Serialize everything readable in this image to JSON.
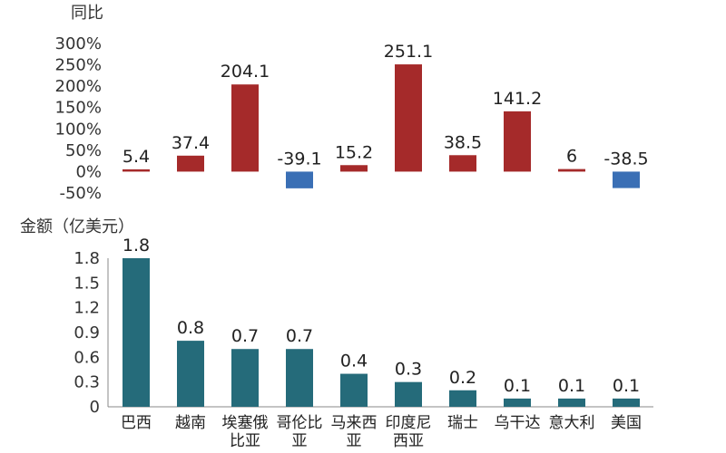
{
  "chart_data": [
    {
      "type": "bar",
      "title": "",
      "ylabel": "同比",
      "xlabel": "",
      "categories": [
        "巴西",
        "越南",
        "埃塞俄比亚",
        "哥伦比亚",
        "马来西亚",
        "印度尼西亚",
        "瑞士",
        "乌干达",
        "意大利",
        "美国"
      ],
      "values": [
        5.4,
        37.4,
        204.1,
        -39.1,
        15.2,
        251.1,
        38.5,
        141.2,
        6,
        -38.5
      ],
      "data_labels": [
        "5.4",
        "37.4",
        "204.1",
        "-39.1",
        "15.2",
        "251.1",
        "38.5",
        "141.2",
        "6",
        "-38.5"
      ],
      "ylim": [
        -50,
        300
      ],
      "yticks": [
        300,
        250,
        200,
        150,
        100,
        50,
        0,
        -50
      ],
      "ytick_labels": [
        "300%",
        "250%",
        "200%",
        "150%",
        "100%",
        "50%",
        "0%",
        "-50%"
      ],
      "grid": false,
      "colors": {
        "positive": "#a52a2a",
        "negative": "#3a6fb5"
      }
    },
    {
      "type": "bar",
      "title": "",
      "ylabel": "金额（亿美元）",
      "xlabel": "",
      "categories": [
        "巴西",
        "越南",
        "埃塞俄比亚",
        "哥伦比亚",
        "马来西亚",
        "印度尼西亚",
        "瑞士",
        "乌干达",
        "意大利",
        "美国"
      ],
      "category_lines": [
        [
          "巴西"
        ],
        [
          "越南"
        ],
        [
          "埃塞俄",
          "比亚"
        ],
        [
          "哥伦比",
          "亚"
        ],
        [
          "马来西",
          "亚"
        ],
        [
          "印度尼",
          "西亚"
        ],
        [
          "瑞士"
        ],
        [
          "乌干达"
        ],
        [
          "意大利"
        ],
        [
          "美国"
        ]
      ],
      "values": [
        1.8,
        0.8,
        0.7,
        0.7,
        0.4,
        0.3,
        0.2,
        0.1,
        0.1,
        0.1
      ],
      "data_labels": [
        "1.8",
        "0.8",
        "0.7",
        "0.7",
        "0.4",
        "0.3",
        "0.2",
        "0.1",
        "0.1",
        "0.1"
      ],
      "ylim": [
        0,
        1.8
      ],
      "yticks": [
        1.8,
        1.5,
        1.2,
        0.9,
        0.6,
        0.3,
        0
      ],
      "ytick_labels": [
        "1.8",
        "1.5",
        "1.2",
        "0.9",
        "0.6",
        "0.3",
        "0"
      ],
      "grid": false,
      "colors": {
        "bar": "#256b7a"
      }
    }
  ]
}
